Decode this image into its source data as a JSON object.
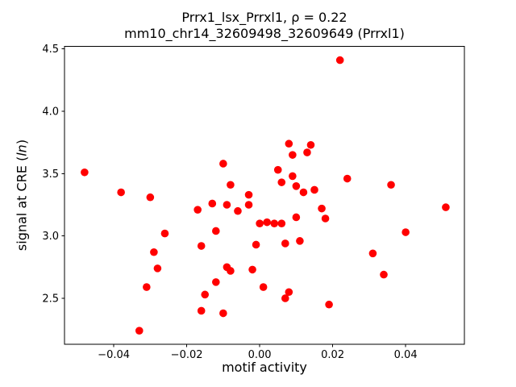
{
  "figure": {
    "title_line1": "Prrx1_lsx_Prrxl1, ρ = 0.22",
    "title_line2": "mm10_chr14_32609498_32609649 (Prrxl1)",
    "xlabel": "motif activity",
    "ylabel_prefix": "signal at CRE (",
    "ylabel_italic": "ln",
    "ylabel_suffix": ")"
  },
  "chart_data": {
    "type": "scatter",
    "title": "Prrx1_lsx_Prrxl1, ρ = 0.22",
    "subtitle": "mm10_chr14_32609498_32609649 (Prrxl1)",
    "xlabel": "motif activity",
    "ylabel": "signal at CRE (ln)",
    "legend": "none",
    "grid": false,
    "marker_color": "#ff0000",
    "axes_color": "#000000",
    "xlim": [
      -0.0535,
      0.0561
    ],
    "ylim": [
      2.13,
      4.52
    ],
    "xtick_values": [
      -0.04,
      -0.02,
      0.0,
      0.02,
      0.04
    ],
    "xtick_labels": [
      "−0.04",
      "−0.02",
      "0.00",
      "0.02",
      "0.04"
    ],
    "ytick_values": [
      2.5,
      3.0,
      3.5,
      4.0,
      4.5
    ],
    "ytick_labels": [
      "2.5",
      "3.0",
      "3.5",
      "4.0",
      "4.5"
    ],
    "points": [
      [
        -0.048,
        3.51
      ],
      [
        -0.038,
        3.35
      ],
      [
        -0.033,
        2.24
      ],
      [
        -0.031,
        2.59
      ],
      [
        -0.03,
        3.31
      ],
      [
        -0.029,
        2.87
      ],
      [
        -0.028,
        2.74
      ],
      [
        -0.026,
        3.02
      ],
      [
        -0.017,
        3.21
      ],
      [
        -0.016,
        2.92
      ],
      [
        -0.016,
        2.4
      ],
      [
        -0.015,
        2.53
      ],
      [
        -0.013,
        3.26
      ],
      [
        -0.012,
        3.04
      ],
      [
        -0.012,
        2.63
      ],
      [
        -0.01,
        3.58
      ],
      [
        -0.01,
        2.38
      ],
      [
        -0.009,
        3.25
      ],
      [
        -0.009,
        2.75
      ],
      [
        -0.008,
        2.72
      ],
      [
        -0.008,
        3.41
      ],
      [
        -0.006,
        3.2
      ],
      [
        -0.003,
        3.33
      ],
      [
        -0.003,
        3.25
      ],
      [
        -0.002,
        2.73
      ],
      [
        -0.001,
        2.93
      ],
      [
        0.0,
        3.1
      ],
      [
        0.001,
        2.59
      ],
      [
        0.002,
        3.11
      ],
      [
        0.004,
        3.1
      ],
      [
        0.005,
        3.53
      ],
      [
        0.006,
        3.43
      ],
      [
        0.006,
        3.1
      ],
      [
        0.007,
        2.94
      ],
      [
        0.007,
        2.5
      ],
      [
        0.008,
        2.55
      ],
      [
        0.008,
        3.74
      ],
      [
        0.009,
        3.65
      ],
      [
        0.009,
        3.48
      ],
      [
        0.01,
        3.4
      ],
      [
        0.01,
        3.15
      ],
      [
        0.011,
        2.96
      ],
      [
        0.012,
        3.35
      ],
      [
        0.013,
        3.67
      ],
      [
        0.014,
        3.73
      ],
      [
        0.015,
        3.37
      ],
      [
        0.017,
        3.22
      ],
      [
        0.018,
        3.14
      ],
      [
        0.019,
        2.45
      ],
      [
        0.022,
        4.41
      ],
      [
        0.024,
        3.46
      ],
      [
        0.031,
        2.86
      ],
      [
        0.034,
        2.69
      ],
      [
        0.036,
        3.41
      ],
      [
        0.04,
        3.03
      ],
      [
        0.051,
        3.23
      ]
    ]
  }
}
